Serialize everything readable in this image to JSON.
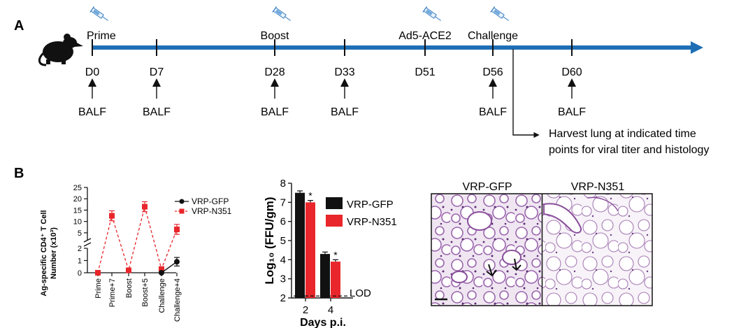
{
  "panel_a": {
    "label": "A",
    "events": [
      {
        "label": "Prime",
        "injection": true
      },
      {
        "label": "Boost",
        "injection": true
      },
      {
        "label": "Ad5-ACE2",
        "injection": true
      },
      {
        "label": "Challenge",
        "injection": true
      }
    ],
    "days": [
      {
        "label": "D0",
        "balf": true
      },
      {
        "label": "D7",
        "balf": true
      },
      {
        "label": "D28",
        "balf": true
      },
      {
        "label": "D33",
        "balf": true
      },
      {
        "label": "D51",
        "balf": false
      },
      {
        "label": "D56",
        "balf": true
      },
      {
        "label": "D60",
        "balf": true
      }
    ],
    "sample_label": "BALF",
    "harvest_text": [
      "Harvest lung at indicated time",
      "points for viral titer and histology"
    ],
    "timeline_color": "#1f6fb5"
  },
  "panel_b": {
    "label": "B",
    "line_chart": {
      "type": "line",
      "ylabel_lines": [
        "Ag-specific CD4⁺ T Cell",
        "Number (x10³)"
      ],
      "categories": [
        "Prime",
        "Prime+7",
        "Boost",
        "Boost+5",
        "Challenge",
        "Challenge+4"
      ],
      "upper_ticks": [
        "5",
        "10",
        "15",
        "20",
        "25"
      ],
      "lower_ticks": [
        "0",
        "1",
        "2"
      ],
      "series": [
        {
          "name": "VRP-GFP",
          "color": "#111111",
          "marker": "circle",
          "points": [
            {
              "x": "Challenge",
              "y": 0
            },
            {
              "x": "Challenge+4",
              "y": 0.9
            }
          ]
        },
        {
          "name": "VRP-N351",
          "color": "#e8262b",
          "marker": "square",
          "values": [
            0,
            12.5,
            0.2,
            16.5,
            0.3,
            6.5
          ]
        }
      ]
    },
    "bar_chart": {
      "type": "bar",
      "ylabel": "Log₁₀ (FFU/gm)",
      "xlabel": "Days p.i.",
      "categories": [
        "2",
        "4"
      ],
      "ylim": [
        2,
        8
      ],
      "yticks": [
        "2",
        "3",
        "4",
        "5",
        "6",
        "7",
        "8"
      ],
      "series": [
        {
          "name": "VRP-GFP",
          "color": "#111111",
          "values": [
            7.5,
            4.3
          ]
        },
        {
          "name": "VRP-N351",
          "color": "#e8262b",
          "values": [
            7.0,
            3.9
          ]
        }
      ],
      "significance": "*",
      "lod_label": "LOD",
      "lod_value": 2.1
    },
    "histology": {
      "left_label": "VRP-GFP",
      "right_label": "VRP-N351",
      "stain_color": "#8a4f9c"
    }
  }
}
